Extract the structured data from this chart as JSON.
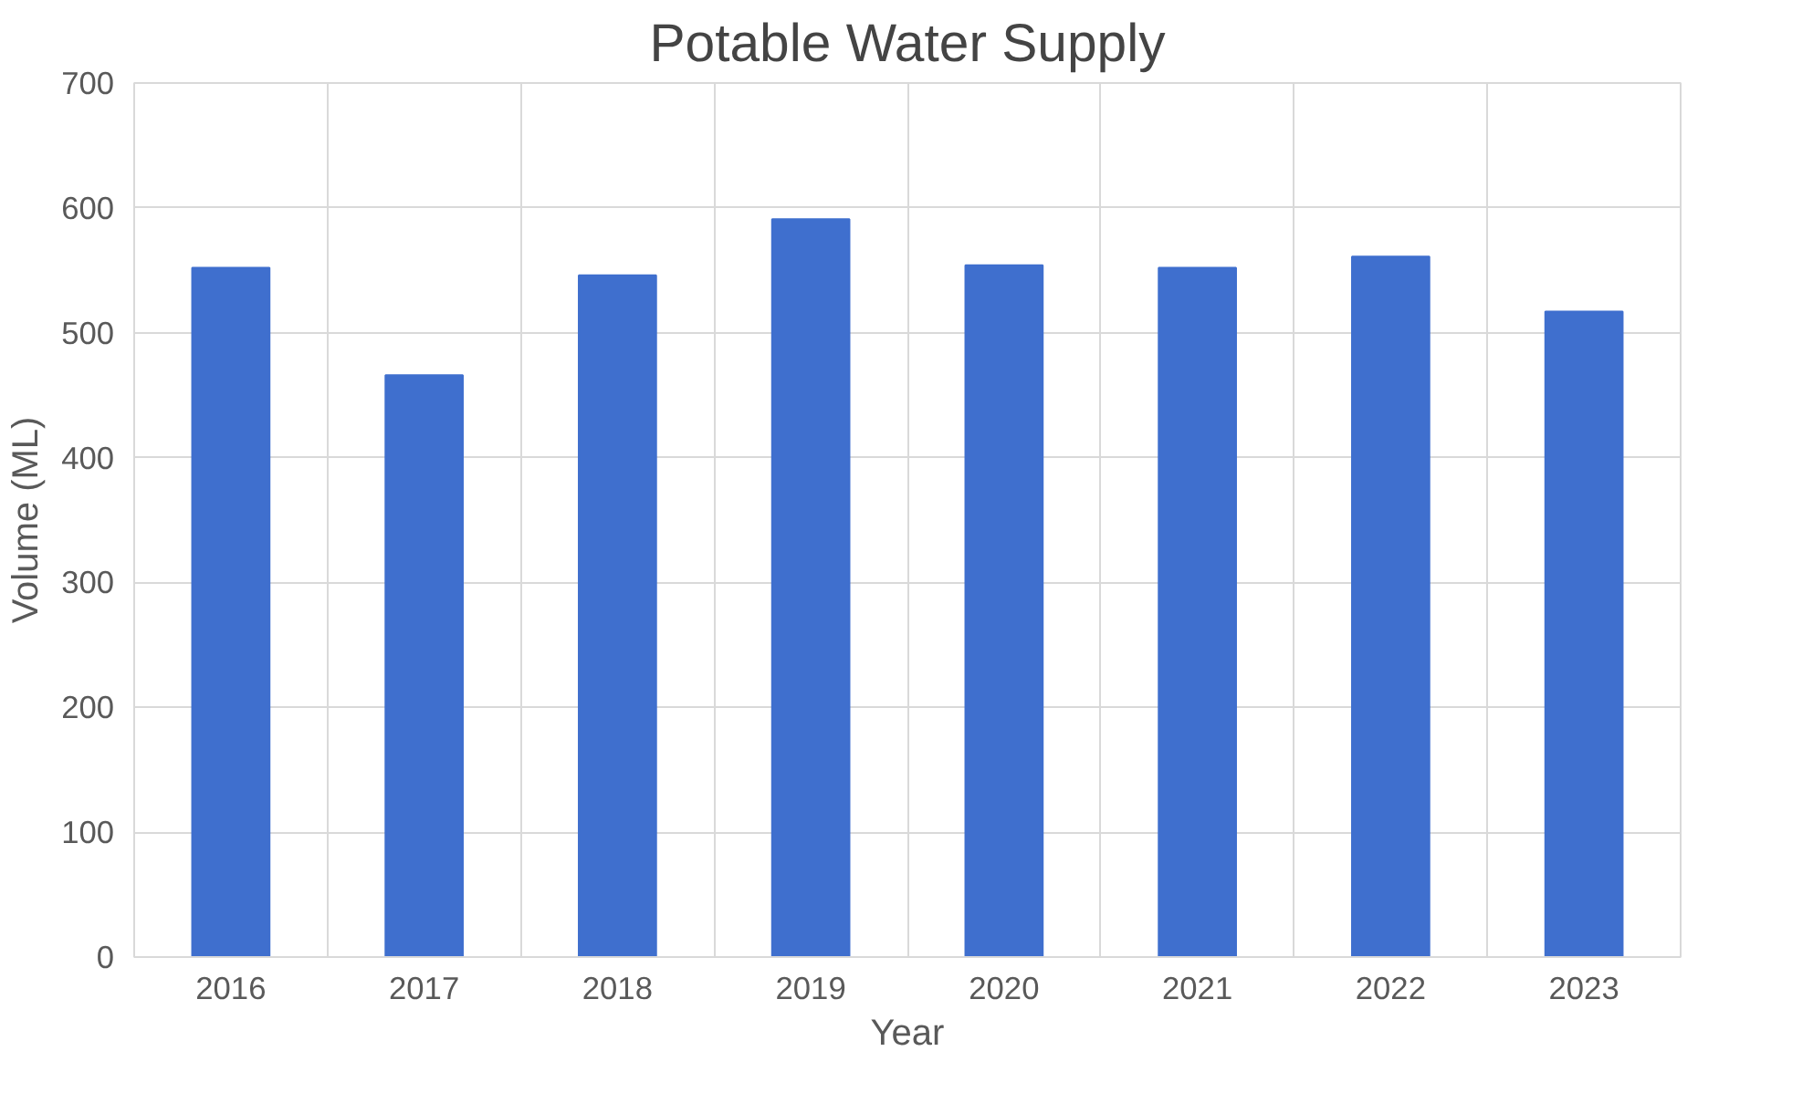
{
  "chart_data": {
    "type": "bar",
    "title": "Potable Water Supply",
    "xlabel": "Year",
    "ylabel": "Volume (ML)",
    "categories": [
      "2016",
      "2017",
      "2018",
      "2019",
      "2020",
      "2021",
      "2022",
      "2023"
    ],
    "values": [
      552,
      466,
      546,
      591,
      554,
      552,
      561,
      517
    ],
    "color": "#3f6fce",
    "ylim": [
      0,
      700
    ],
    "yticks": [
      0,
      100,
      200,
      300,
      400,
      500,
      600,
      700
    ],
    "grid": true
  }
}
